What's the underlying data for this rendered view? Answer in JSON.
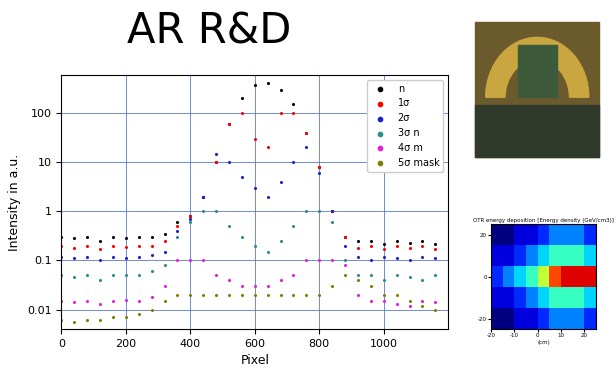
{
  "chart_data": [
    {
      "type": "scatter",
      "title": "AR R&D",
      "x_label": "Pixel",
      "y_label": "Intensity in a.u.",
      "x": [
        0,
        40,
        80,
        120,
        160,
        200,
        240,
        280,
        320,
        360,
        400,
        440,
        480,
        520,
        560,
        600,
        640,
        680,
        720,
        760,
        800,
        840,
        880,
        920,
        960,
        1000,
        1040,
        1080,
        1120,
        1160
      ],
      "series": [
        {
          "name": "n",
          "color": "#000000",
          "marker": "point",
          "values": [
            0.3,
            0.28,
            0.3,
            0.25,
            0.3,
            0.28,
            0.3,
            0.3,
            0.35,
            0.6,
            0.8,
            2,
            10,
            60,
            200,
            380,
            400,
            300,
            150,
            40,
            8,
            1,
            0.3,
            0.25,
            0.25,
            0.22,
            0.25,
            0.23,
            0.25,
            0.22
          ]
        },
        {
          "name": "1σ",
          "color": "#ff0000",
          "marker": "point",
          "values": [
            0.2,
            0.18,
            0.2,
            0.17,
            0.2,
            0.19,
            0.2,
            0.2,
            0.25,
            0.5,
            0.8,
            2,
            10,
            60,
            100,
            30,
            20,
            100,
            100,
            40,
            8,
            1,
            0.3,
            0.18,
            0.2,
            0.17,
            0.2,
            0.18,
            0.2,
            0.17
          ]
        },
        {
          "name": "2σ",
          "color": "#1f1fcf",
          "marker": "point",
          "values": [
            0.12,
            0.11,
            0.12,
            0.1,
            0.12,
            0.11,
            0.12,
            0.13,
            0.15,
            0.4,
            0.7,
            2,
            15,
            10,
            5,
            3,
            2,
            4,
            10,
            20,
            6,
            1,
            0.2,
            0.12,
            0.1,
            0.12,
            0.11,
            0.1,
            0.12,
            0.11
          ]
        },
        {
          "name": "3σ n",
          "color": "#2a8c8c",
          "marker": "point",
          "values": [
            0.05,
            0.045,
            0.05,
            0.04,
            0.05,
            0.05,
            0.05,
            0.06,
            0.08,
            0.3,
            0.6,
            1,
            1,
            0.5,
            0.3,
            0.2,
            0.15,
            0.25,
            0.5,
            1,
            1,
            0.6,
            0.1,
            0.05,
            0.05,
            0.04,
            0.05,
            0.045,
            0.04,
            0.05
          ]
        },
        {
          "name": "4σ m",
          "color": "#e020e0",
          "marker": "point",
          "values": [
            0.015,
            0.014,
            0.015,
            0.013,
            0.015,
            0.016,
            0.015,
            0.018,
            0.03,
            0.1,
            0.1,
            0.1,
            0.05,
            0.04,
            0.03,
            0.03,
            0.03,
            0.04,
            0.05,
            0.1,
            0.1,
            0.1,
            0.08,
            0.02,
            0.015,
            0.015,
            0.013,
            0.012,
            0.015,
            0.014
          ]
        },
        {
          "name": "5σ mask",
          "color": "#808000",
          "marker": "point",
          "values": [
            0.006,
            0.0055,
            0.006,
            0.006,
            0.007,
            0.007,
            0.008,
            0.01,
            0.015,
            0.02,
            0.02,
            0.02,
            0.02,
            0.02,
            0.02,
            0.02,
            0.02,
            0.02,
            0.02,
            0.02,
            0.02,
            0.03,
            0.05,
            0.04,
            0.03,
            0.02,
            0.02,
            0.015,
            0.012,
            0.01
          ]
        }
      ],
      "xlim": [
        0,
        1200
      ],
      "xticks": [
        0,
        200,
        400,
        600,
        800,
        1000
      ],
      "ylim": [
        0.004,
        600
      ],
      "yticks": [
        0.01,
        0.1,
        1,
        10,
        100
      ],
      "log": "y",
      "grid": true,
      "legend": "upper right"
    },
    {
      "type": "heatmap",
      "title": "OTR energy deposition [Energy density (GeV/cm3)]",
      "x_label": "(cm)",
      "cell_x": [
        -20,
        -15,
        -10,
        -5,
        0,
        5,
        10,
        15,
        20,
        25
      ],
      "cell_y": [
        -25,
        -15,
        -5,
        5,
        15,
        25
      ],
      "cells": [
        [
          1e-16,
          1e-16,
          1e-15,
          1e-15,
          1e-14,
          1e-13,
          1e-13,
          1e-13,
          1e-14
        ],
        [
          1e-15,
          1e-15,
          1e-14,
          1e-13,
          1e-12,
          1e-11,
          1e-11,
          1e-11,
          1e-12
        ],
        [
          1e-14,
          1e-13,
          1e-12,
          1e-11,
          1e-09,
          1e-06,
          1e-05,
          1e-05,
          1e-05
        ],
        [
          1e-15,
          1e-15,
          1e-14,
          1e-13,
          1e-12,
          1e-11,
          1e-11,
          1e-11,
          1e-12
        ],
        [
          1e-16,
          1e-16,
          1e-15,
          1e-15,
          1e-14,
          1e-13,
          1e-13,
          1e-13,
          1e-14
        ]
      ],
      "color_range": [
        1e-16,
        0.0001
      ],
      "xlim": [
        -20,
        25
      ],
      "xticks": [
        -20,
        -10,
        0,
        10,
        20
      ],
      "ylim": [
        -25,
        25
      ],
      "yticks": [
        -20,
        0,
        20
      ]
    }
  ]
}
